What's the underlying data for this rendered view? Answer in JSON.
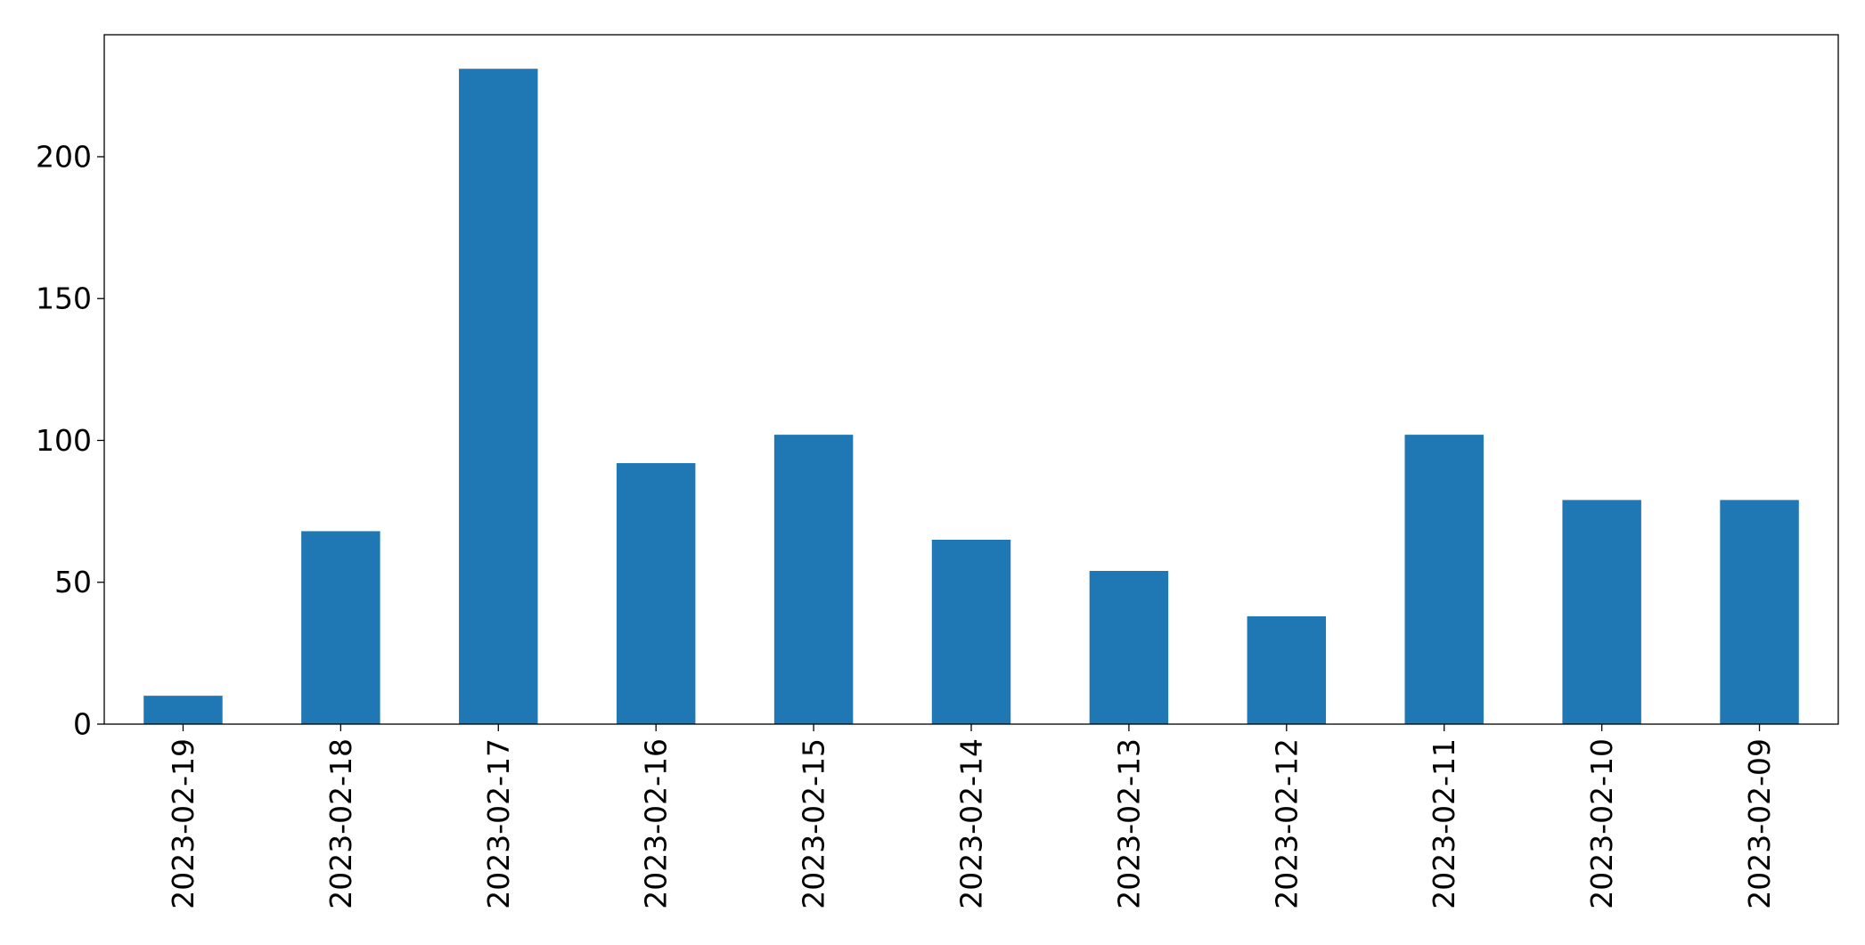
{
  "chart_data": {
    "type": "bar",
    "title": "",
    "xlabel": "",
    "ylabel": "",
    "categories": [
      "2023-02-19",
      "2023-02-18",
      "2023-02-17",
      "2023-02-16",
      "2023-02-15",
      "2023-02-14",
      "2023-02-13",
      "2023-02-12",
      "2023-02-11",
      "2023-02-10",
      "2023-02-09"
    ],
    "values": [
      10,
      68,
      231,
      92,
      102,
      65,
      54,
      38,
      102,
      79,
      79
    ],
    "ylim": [
      0,
      243
    ],
    "yticks": [
      0,
      50,
      100,
      150,
      200
    ],
    "ytick_labels": [
      "0",
      "50",
      "100",
      "150",
      "200"
    ],
    "grid": false,
    "legend": "none",
    "bar_color": "#1f77b4"
  }
}
